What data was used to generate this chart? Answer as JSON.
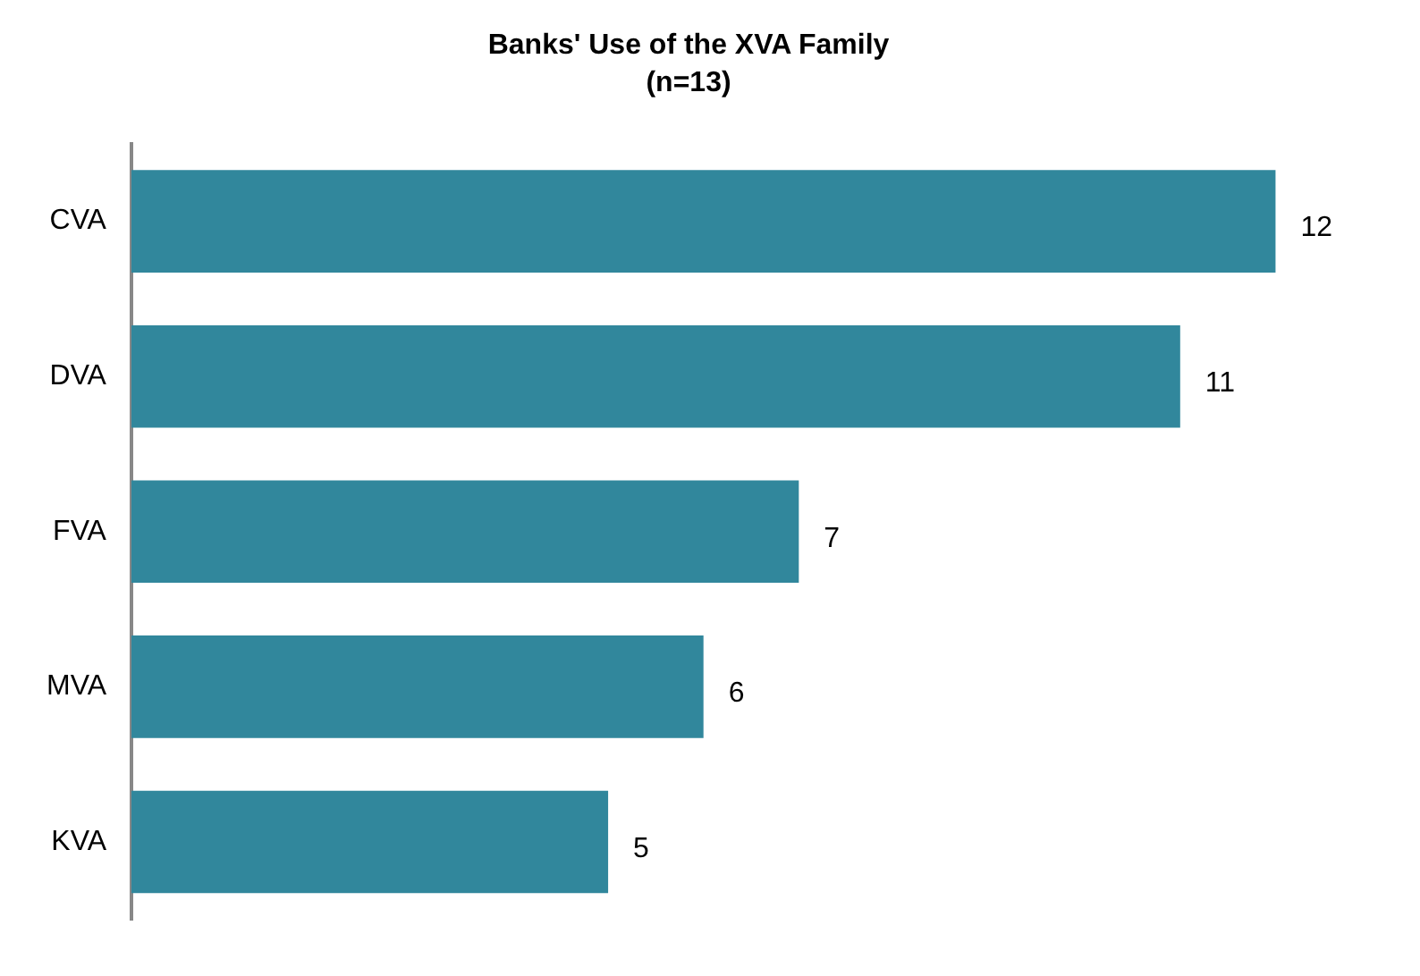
{
  "chart_data": {
    "type": "bar",
    "orientation": "horizontal",
    "title": "Banks' Use of the XVA Family",
    "subtitle": "(n=13)",
    "categories": [
      "CVA",
      "DVA",
      "FVA",
      "MVA",
      "KVA"
    ],
    "values": [
      12,
      11,
      7,
      6,
      5
    ],
    "color": "#31879c",
    "data_labels": true
  }
}
